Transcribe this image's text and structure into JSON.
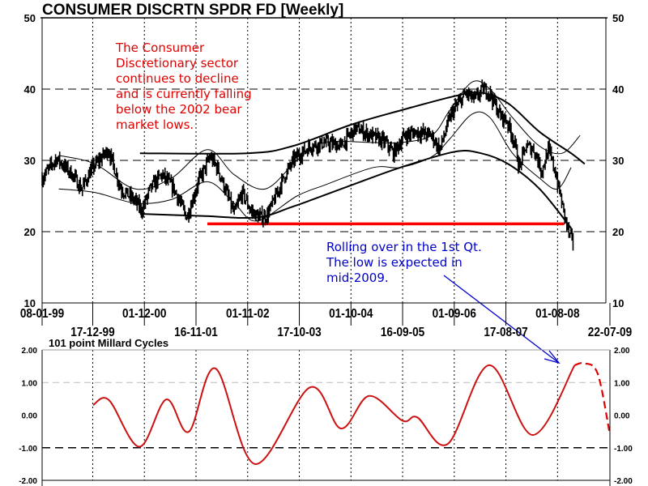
{
  "chart_data": [
    {
      "type": "bar",
      "title": "CONSUMER DISCRTN SPDR FD  [Weekly]",
      "xlim": [
        "1999-01-08",
        "2009-07-22"
      ],
      "ylim": [
        10,
        50
      ],
      "yticks": [
        "50",
        "40",
        "30",
        "20",
        "10"
      ],
      "xticks_row1": [
        "08-01-99",
        "01-12-00",
        "01-11-02",
        "01-10-04",
        "01-09-06",
        "01-08-08"
      ],
      "xticks_row2": [
        "17-12-99",
        "16-11-01",
        "17-10-03",
        "16-09-05",
        "17-08-07",
        "22-07-09"
      ],
      "xtick_dates": [
        "1999-01-08",
        "1999-12-17",
        "2000-12-01",
        "2001-11-16",
        "2002-11-01",
        "2003-10-17",
        "2004-10-01",
        "2005-09-16",
        "2006-09-01",
        "2007-08-17",
        "2008-08-01",
        "2009-07-22"
      ],
      "grid": true,
      "price_close": [
        [
          "1999-01-08",
          27.5
        ],
        [
          "1999-04-15",
          30.3
        ],
        [
          "1999-08-01",
          28
        ],
        [
          "1999-10-01",
          26
        ],
        [
          "1999-12-17",
          29
        ],
        [
          "2000-04-01",
          31.5
        ],
        [
          "2000-06-25",
          26
        ],
        [
          "2000-09-20",
          24.5
        ],
        [
          "2000-11-15",
          23
        ],
        [
          "2001-01-08",
          26
        ],
        [
          "2001-03-28",
          28
        ],
        [
          "2001-06-20",
          26
        ],
        [
          "2001-09-15",
          22
        ],
        [
          "2001-12-01",
          27
        ],
        [
          "2002-02-20",
          30.5
        ],
        [
          "2002-04-15",
          28.7
        ],
        [
          "2002-06-10",
          25.5
        ],
        [
          "2002-08-01",
          22.5
        ],
        [
          "2002-09-25",
          25.5
        ],
        [
          "2002-11-20",
          23
        ],
        [
          "2003-01-15",
          22
        ],
        [
          "2003-03-10",
          22.2
        ],
        [
          "2003-05-01",
          24.5
        ],
        [
          "2003-07-01",
          27.5
        ],
        [
          "2003-09-15",
          30.3
        ],
        [
          "2004-01-01",
          32
        ],
        [
          "2004-04-15",
          32.5
        ],
        [
          "2004-07-25",
          32
        ],
        [
          "2004-11-01",
          34.5
        ],
        [
          "2005-02-15",
          33.5
        ],
        [
          "2005-05-25",
          32.5
        ],
        [
          "2005-07-15",
          31
        ],
        [
          "2005-10-01",
          33.5
        ],
        [
          "2005-12-20",
          34
        ],
        [
          "2006-04-01",
          33.5
        ],
        [
          "2006-05-25",
          31.5
        ],
        [
          "2006-08-10",
          36.5
        ],
        [
          "2006-11-20",
          39.5
        ],
        [
          "2007-01-15",
          38.5
        ],
        [
          "2007-03-15",
          40
        ],
        [
          "2007-05-01",
          39.5
        ],
        [
          "2007-07-01",
          36.5
        ],
        [
          "2007-08-25",
          35.5
        ],
        [
          "2007-10-15",
          32.5
        ],
        [
          "2007-11-15",
          29
        ],
        [
          "2008-01-01",
          32
        ],
        [
          "2008-02-25",
          31.5
        ],
        [
          "2008-04-15",
          28.5
        ],
        [
          "2008-06-01",
          31.5
        ],
        [
          "2008-07-15",
          28.5
        ],
        [
          "2008-09-15",
          22.5
        ],
        [
          "2008-10-20",
          19.5
        ],
        [
          "2008-11-15",
          18.5
        ]
      ],
      "envelope_outer_upper": [
        [
          "2000-11-01",
          31
        ],
        [
          "2002-11-01",
          31
        ],
        [
          "2003-09-01",
          32
        ],
        [
          "2004-10-01",
          35
        ],
        [
          "2005-09-01",
          37
        ],
        [
          "2006-09-01",
          39
        ],
        [
          "2007-03-01",
          39.5
        ],
        [
          "2007-09-01",
          38
        ],
        [
          "2008-04-01",
          34
        ],
        [
          "2008-11-01",
          31
        ],
        [
          "2009-02-01",
          29.5
        ]
      ],
      "envelope_outer_lower": [
        [
          "2000-11-01",
          22.5
        ],
        [
          "2002-01-01",
          22.2
        ],
        [
          "2003-01-01",
          22
        ],
        [
          "2003-09-01",
          23.5
        ],
        [
          "2004-10-01",
          26.5
        ],
        [
          "2005-09-01",
          29
        ],
        [
          "2006-09-01",
          31.2
        ],
        [
          "2007-03-01",
          31
        ],
        [
          "2007-09-01",
          29.5
        ],
        [
          "2008-04-01",
          26
        ],
        [
          "2008-11-01",
          20.5
        ]
      ],
      "envelope_inner_upper": [
        [
          "1999-05-01",
          30.7
        ],
        [
          "2000-01-01",
          29.5
        ],
        [
          "2000-10-01",
          26
        ],
        [
          "2001-06-01",
          27.5
        ],
        [
          "2002-02-01",
          31.5
        ],
        [
          "2002-08-01",
          28
        ],
        [
          "2003-03-01",
          26
        ],
        [
          "2003-10-01",
          30
        ],
        [
          "2004-04-01",
          32.5
        ],
        [
          "2005-03-01",
          32.5
        ],
        [
          "2005-09-01",
          32.5
        ],
        [
          "2006-04-01",
          33.5
        ],
        [
          "2006-08-01",
          37
        ],
        [
          "2007-01-01",
          41
        ],
        [
          "2007-05-01",
          40
        ],
        [
          "2007-10-01",
          36
        ],
        [
          "2008-04-01",
          32
        ],
        [
          "2008-09-01",
          31
        ],
        [
          "2009-01-01",
          33.5
        ]
      ],
      "envelope_inner_lower": [
        [
          "1999-05-01",
          26
        ],
        [
          "2000-01-01",
          25.5
        ],
        [
          "2000-10-01",
          24
        ],
        [
          "2001-06-01",
          24.5
        ],
        [
          "2002-02-01",
          27
        ],
        [
          "2002-08-01",
          24
        ],
        [
          "2003-01-01",
          21.5
        ],
        [
          "2003-10-01",
          25
        ],
        [
          "2004-04-01",
          26.5
        ],
        [
          "2005-03-01",
          29
        ],
        [
          "2005-09-01",
          29
        ],
        [
          "2006-04-01",
          30.5
        ],
        [
          "2006-08-01",
          33
        ],
        [
          "2007-01-01",
          36.5
        ],
        [
          "2007-05-01",
          36
        ],
        [
          "2007-10-01",
          31
        ],
        [
          "2008-04-01",
          27.5
        ],
        [
          "2008-08-01",
          26
        ],
        [
          "2008-11-01",
          29
        ]
      ],
      "support_line": {
        "value": 21.1,
        "from": "2002-02-01",
        "to": "2008-09-15",
        "color": "#ff0000"
      },
      "annotations": [
        {
          "lines": [
            "The Consumer",
            "Discretionary sector",
            "continues to decline",
            "and is currently falling",
            "below the 2002 bear",
            "market lows."
          ],
          "color": "#e00000"
        },
        {
          "lines": [
            "Rolling over in the 1st Qt.",
            "The low is expected in",
            "mid-2009."
          ],
          "color": "#0000cc"
        }
      ]
    },
    {
      "type": "line",
      "title": "101 point Millard Cycles",
      "ylim": [
        -2,
        2
      ],
      "yticks": [
        "2.00",
        "1.00",
        "0.00",
        "-1.00",
        "-2.00"
      ],
      "color": "#cc1111",
      "series_solid": [
        [
          "1999-12-20",
          0.31
        ],
        [
          "2000-04-05",
          0.46
        ],
        [
          "2000-10-28",
          -0.97
        ],
        [
          "2001-04-28",
          0.48
        ],
        [
          "2001-09-28",
          -0.51
        ],
        [
          "2002-03-28",
          1.43
        ],
        [
          "2002-12-20",
          -1.5
        ],
        [
          "2003-12-28",
          0.85
        ],
        [
          "2004-07-25",
          -0.41
        ],
        [
          "2005-02-01",
          0.59
        ],
        [
          "2005-09-15",
          -0.17
        ],
        [
          "2005-12-25",
          -0.07
        ],
        [
          "2006-07-20",
          -0.88
        ],
        [
          "2007-04-25",
          1.53
        ],
        [
          "2008-02-15",
          -0.61
        ],
        [
          "2008-11-25",
          1.53
        ]
      ],
      "series_projected": [
        [
          "2008-11-25",
          1.53
        ],
        [
          "2009-02-01",
          1.59
        ],
        [
          "2009-05-01",
          1.26
        ],
        [
          "2009-07-22",
          -0.6
        ]
      ],
      "arrow_color": "#0000cc"
    }
  ]
}
